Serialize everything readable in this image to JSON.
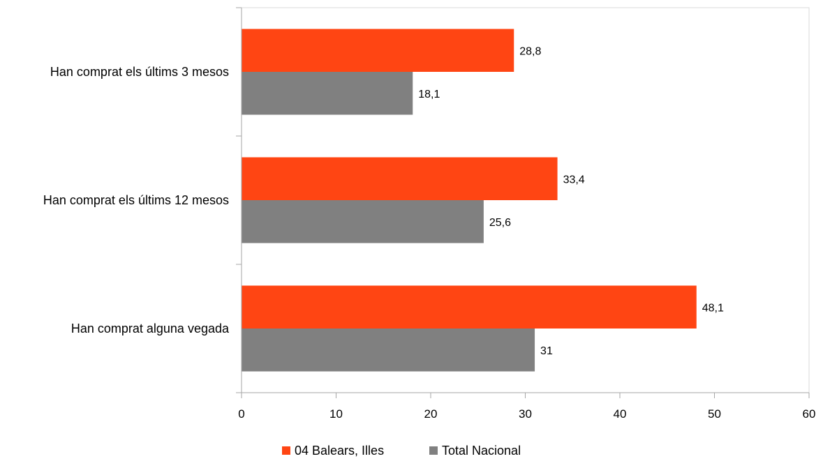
{
  "chart_data": {
    "type": "bar",
    "orientation": "horizontal",
    "categories": [
      "Han comprat els últims 3 mesos",
      "Han comprat els últims 12 mesos",
      "Han comprat alguna vegada"
    ],
    "series": [
      {
        "name": "04 Balears, Illes",
        "color": "#ff4513",
        "values": [
          28.8,
          33.4,
          48.1
        ],
        "labels": [
          "28,8",
          "33,4",
          "48,1"
        ]
      },
      {
        "name": "Total Nacional",
        "color": "#808080",
        "values": [
          18.1,
          25.6,
          31
        ],
        "labels": [
          "18,1",
          "25,6",
          "31"
        ]
      }
    ],
    "xlim": [
      0,
      60
    ],
    "xticks": [
      0,
      10,
      20,
      30,
      40,
      50,
      60
    ],
    "tick_labels": [
      "0",
      "10",
      "20",
      "30",
      "40",
      "50",
      "60"
    ],
    "grid": false,
    "legend_position": "bottom"
  }
}
